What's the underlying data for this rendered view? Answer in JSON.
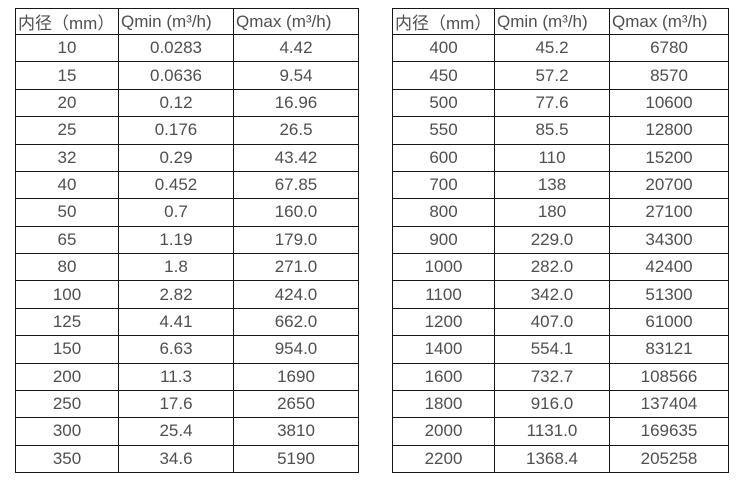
{
  "page": {
    "background": "#ffffff",
    "text_color": "#4f4f4f",
    "border_color": "#161616"
  },
  "chart_data": [
    {
      "type": "table",
      "name": "flow-rate-table-dn10-350",
      "columns": [
        "内径（mm）",
        "Qmin (m³/h)",
        "Qmax (m³/h)"
      ],
      "rows": [
        [
          "10",
          "0.0283",
          "4.42"
        ],
        [
          "15",
          "0.0636",
          "9.54"
        ],
        [
          "20",
          "0.12",
          "16.96"
        ],
        [
          "25",
          "0.176",
          "26.5"
        ],
        [
          "32",
          "0.29",
          "43.42"
        ],
        [
          "40",
          "0.452",
          "67.85"
        ],
        [
          "50",
          "0.7",
          "160.0"
        ],
        [
          "65",
          "1.19",
          "179.0"
        ],
        [
          "80",
          "1.8",
          "271.0"
        ],
        [
          "100",
          "2.82",
          "424.0"
        ],
        [
          "125",
          "4.41",
          "662.0"
        ],
        [
          "150",
          "6.63",
          "954.0"
        ],
        [
          "200",
          "11.3",
          "1690"
        ],
        [
          "250",
          "17.6",
          "2650"
        ],
        [
          "300",
          "25.4",
          "3810"
        ],
        [
          "350",
          "34.6",
          "5190"
        ]
      ]
    },
    {
      "type": "table",
      "name": "flow-rate-table-dn400-2200",
      "columns": [
        "内径（mm）",
        "Qmin (m³/h)",
        "Qmax (m³/h)"
      ],
      "rows": [
        [
          "400",
          "45.2",
          "6780"
        ],
        [
          "450",
          "57.2",
          "8570"
        ],
        [
          "500",
          "77.6",
          "10600"
        ],
        [
          "550",
          "85.5",
          "12800"
        ],
        [
          "600",
          "110",
          "15200"
        ],
        [
          "700",
          "138",
          "20700"
        ],
        [
          "800",
          "180",
          "27100"
        ],
        [
          "900",
          "229.0",
          "34300"
        ],
        [
          "1000",
          "282.0",
          "42400"
        ],
        [
          "1100",
          "342.0",
          "51300"
        ],
        [
          "1200",
          "407.0",
          "61000"
        ],
        [
          "1400",
          "554.1",
          "83121"
        ],
        [
          "1600",
          "732.7",
          "108566"
        ],
        [
          "1800",
          "916.0",
          "137404"
        ],
        [
          "2000",
          "1131.0",
          "169635"
        ],
        [
          "2200",
          "1368.4",
          "205258"
        ]
      ]
    }
  ]
}
